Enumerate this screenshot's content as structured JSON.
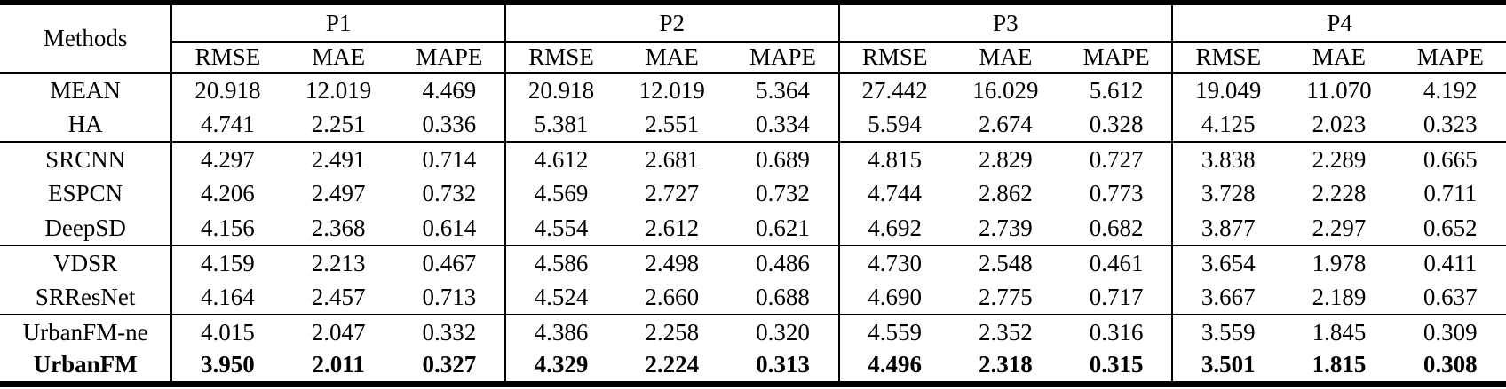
{
  "table": {
    "header": {
      "methods": "Methods",
      "groups": [
        "P1",
        "P2",
        "P3",
        "P4"
      ],
      "metrics": [
        "RMSE",
        "MAE",
        "MAPE"
      ]
    },
    "rows": [
      {
        "method": "MEAN",
        "values": [
          "20.918",
          "12.019",
          "4.469",
          "20.918",
          "12.019",
          "5.364",
          "27.442",
          "16.029",
          "5.612",
          "19.049",
          "11.070",
          "4.192"
        ]
      },
      {
        "method": "HA",
        "values": [
          "4.741",
          "2.251",
          "0.336",
          "5.381",
          "2.551",
          "0.334",
          "5.594",
          "2.674",
          "0.328",
          "4.125",
          "2.023",
          "0.323"
        ]
      },
      {
        "method": "SRCNN",
        "values": [
          "4.297",
          "2.491",
          "0.714",
          "4.612",
          "2.681",
          "0.689",
          "4.815",
          "2.829",
          "0.727",
          "3.838",
          "2.289",
          "0.665"
        ]
      },
      {
        "method": "ESPCN",
        "values": [
          "4.206",
          "2.497",
          "0.732",
          "4.569",
          "2.727",
          "0.732",
          "4.744",
          "2.862",
          "0.773",
          "3.728",
          "2.228",
          "0.711"
        ]
      },
      {
        "method": "DeepSD",
        "values": [
          "4.156",
          "2.368",
          "0.614",
          "4.554",
          "2.612",
          "0.621",
          "4.692",
          "2.739",
          "0.682",
          "3.877",
          "2.297",
          "0.652"
        ]
      },
      {
        "method": "VDSR",
        "values": [
          "4.159",
          "2.213",
          "0.467",
          "4.586",
          "2.498",
          "0.486",
          "4.730",
          "2.548",
          "0.461",
          "3.654",
          "1.978",
          "0.411"
        ]
      },
      {
        "method": "SRResNet",
        "values": [
          "4.164",
          "2.457",
          "0.713",
          "4.524",
          "2.660",
          "0.688",
          "4.690",
          "2.775",
          "0.717",
          "3.667",
          "2.189",
          "0.637"
        ]
      },
      {
        "method": "UrbanFM-ne",
        "values": [
          "4.015",
          "2.047",
          "0.332",
          "4.386",
          "2.258",
          "0.320",
          "4.559",
          "2.352",
          "0.316",
          "3.559",
          "1.845",
          "0.309"
        ]
      },
      {
        "method": "UrbanFM",
        "values": [
          "3.950",
          "2.011",
          "0.327",
          "4.329",
          "2.224",
          "0.313",
          "4.496",
          "2.318",
          "0.315",
          "3.501",
          "1.815",
          "0.308"
        ]
      }
    ]
  }
}
